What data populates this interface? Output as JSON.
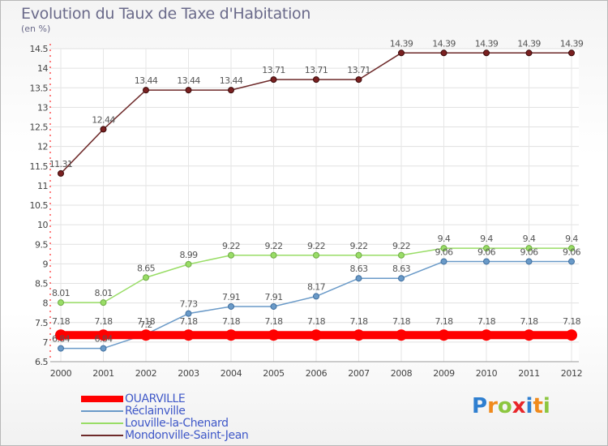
{
  "chart_data": {
    "type": "line",
    "title": "Evolution du Taux de Taxe d'Habitation",
    "unit_label": "(en %)",
    "x": [
      "2000",
      "2001",
      "2002",
      "2003",
      "2004",
      "2005",
      "2006",
      "2007",
      "2008",
      "2009",
      "2010",
      "2011",
      "2012"
    ],
    "ylim": [
      6.5,
      14.5
    ],
    "yticks": [
      "6.5",
      "7",
      "7.5",
      "8",
      "8.5",
      "9",
      "9.5",
      "10",
      "10.5",
      "11",
      "11.5",
      "12",
      "12.5",
      "13",
      "13.5",
      "14",
      "14.5"
    ],
    "grid": true,
    "legend_position": "bottom-left",
    "series": [
      {
        "name": "OUARVILLE",
        "color": "#ff0000",
        "values": [
          7.18,
          7.18,
          7.18,
          7.18,
          7.18,
          7.18,
          7.18,
          7.18,
          7.18,
          7.18,
          7.18,
          7.18,
          7.18
        ],
        "labels": [
          "7.18",
          "7.18",
          "7.18",
          "7.18",
          "7.18",
          "7.18",
          "7.18",
          "7.18",
          "7.18",
          "7.18",
          "7.18",
          "7.18",
          "7.18"
        ]
      },
      {
        "name": "Réclainville",
        "color": "#6a9ac8",
        "values": [
          6.84,
          6.84,
          7.2,
          7.73,
          7.91,
          7.91,
          8.17,
          8.63,
          8.63,
          9.06,
          9.06,
          9.06,
          9.06
        ],
        "labels": [
          "6.84",
          "6.84",
          "7.2",
          "7.73",
          "7.91",
          "7.91",
          "8.17",
          "8.63",
          "8.63",
          "9.06",
          "9.06",
          "9.06",
          "9.06"
        ]
      },
      {
        "name": "Louville-la-Chenard",
        "color": "#99dd66",
        "values": [
          8.01,
          8.01,
          8.65,
          8.99,
          9.22,
          9.22,
          9.22,
          9.22,
          9.22,
          9.4,
          9.4,
          9.4,
          9.4
        ],
        "labels": [
          "8.01",
          "8.01",
          "8.65",
          "8.99",
          "9.22",
          "9.22",
          "9.22",
          "9.22",
          "9.22",
          "9.4",
          "9.4",
          "9.4",
          "9.4"
        ]
      },
      {
        "name": "Mondonville-Saint-Jean",
        "color": "#6e2a2a",
        "values": [
          11.31,
          12.44,
          13.44,
          13.44,
          13.44,
          13.71,
          13.71,
          13.71,
          14.39,
          14.39,
          14.39,
          14.39,
          14.39
        ],
        "labels": [
          "11.31",
          "12.44",
          "13.44",
          "13.44",
          "13.44",
          "13.71",
          "13.71",
          "13.71",
          "14.39",
          "14.39",
          "14.39",
          "14.39",
          "14.39"
        ]
      }
    ]
  },
  "brand": {
    "letters": [
      "P",
      "r",
      "o",
      "x",
      "i",
      "t",
      "i"
    ],
    "colors": [
      "#2f7fd0",
      "#f08a1c",
      "#8cc63f",
      "#e8262a",
      "#2f7fd0",
      "#f08a1c",
      "#8cc63f"
    ]
  }
}
